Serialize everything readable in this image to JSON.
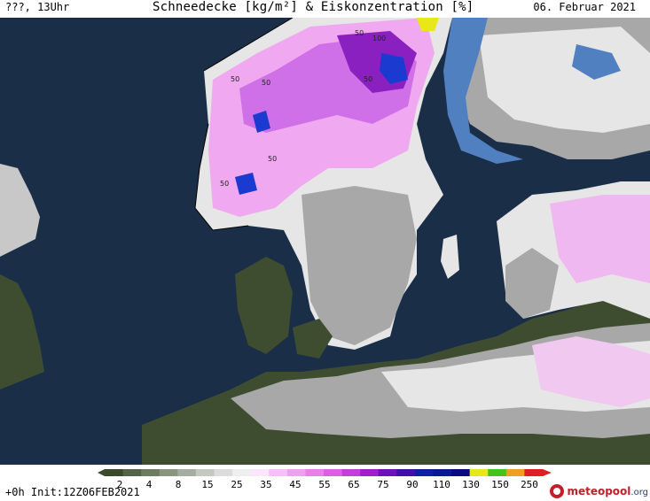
{
  "header": {
    "left": "???, 13Uhr",
    "title": "Schneedecke [kg/m²] & Eiskonzentration [%]",
    "date": "06. Februar 2021"
  },
  "map": {
    "contour_labels": [
      "50",
      "50",
      "50",
      "100",
      "50",
      "50",
      "50"
    ],
    "colors": {
      "sea": "#1b2e48",
      "land_no_snow": "#3e4d30",
      "snow_light": "#a8a8a8",
      "snow_white": "#e6e6e6",
      "snow_pink": "#f0a8f0",
      "snow_magenta": "#d060e0",
      "snow_purple": "#8a20c0",
      "snow_blue": "#1a3ad0",
      "ice": "#5080c0"
    }
  },
  "legend": {
    "labels": [
      "2",
      "4",
      "8",
      "15",
      "25",
      "35",
      "45",
      "55",
      "65",
      "75",
      "90",
      "110",
      "130",
      "150",
      "250"
    ],
    "colors": [
      "#3a4a2a",
      "#556446",
      "#6e7c60",
      "#8a957e",
      "#a5ada0",
      "#c5c8c0",
      "#dcdcdc",
      "#efefef",
      "#ffe6ff",
      "#f8c0f8",
      "#f0a0f0",
      "#e880ec",
      "#dc60e4",
      "#c040d8",
      "#a020cc",
      "#7010b8",
      "#4010a8",
      "#1020a0",
      "#0a1a90",
      "#0a0a80",
      "#e8e818",
      "#48c020",
      "#f0a020",
      "#e02020"
    ]
  },
  "footer": {
    "init": "+0h Init:12Z06FEB2021",
    "logo_main": "meteopool",
    "logo_tld": ".org"
  }
}
